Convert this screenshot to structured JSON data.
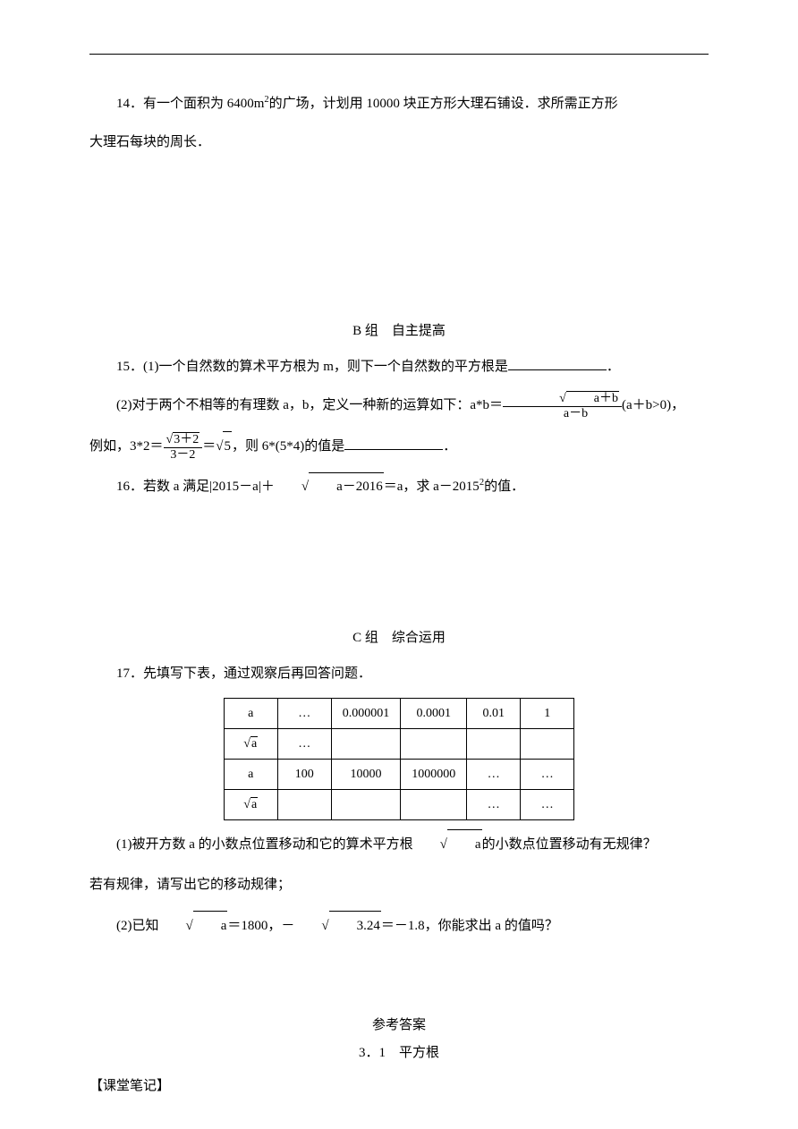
{
  "q14": {
    "text_line1": "14．有一个面积为 6400m",
    "text_line1_cont": "的广场，计划用 10000 块正方形大理石铺设．求所需正方形",
    "text_line2": "大理石每块的周长．"
  },
  "sectionB": {
    "header": "B 组　自主提高"
  },
  "q15": {
    "part1_pre": "15．(1)一个自然数的算术平方根为 m，则下一个自然数的平方根是",
    "part1_post": "．",
    "part2_pre": "(2)对于两个不相等的有理数 a，b，定义一种新的运算如下：a*b＝",
    "frac1_num": "a＋b",
    "frac1_den": "a－b",
    "part2_cond": "(a＋b>0)，",
    "part2_ex_pre": "例如，3*2＝",
    "frac2_num": "3＋2",
    "frac2_den": "3－2",
    "part2_eq": "＝",
    "sqrt5": "5",
    "part2_mid": "，则 6*(5*4)的值是",
    "part2_post": "．"
  },
  "q16": {
    "pre": "16．若数 a 满足|2015－a|＋",
    "sqrt_rad": "a－2016",
    "mid": "＝a，求 a－2015",
    "post": "的值．"
  },
  "sectionC": {
    "header": "C 组　综合运用"
  },
  "q17": {
    "intro": "17．先填写下表，通过观察后再回答问题．",
    "table": {
      "rows": [
        [
          "a",
          "…",
          "0.000001",
          "0.0001",
          "0.01",
          "1"
        ],
        [
          "√a",
          "…",
          "",
          "",
          "",
          ""
        ],
        [
          "a",
          "100",
          "10000",
          "1000000",
          "…",
          "…"
        ],
        [
          "√a",
          "",
          "",
          "",
          "…",
          "…"
        ]
      ]
    },
    "part1_pre": "(1)被开方数 a 的小数点位置移动和它的算术平方根",
    "part1_sqrt": "a",
    "part1_post": "的小数点位置移动有无规律？",
    "part1_line2": "若有规律，请写出它的移动规律；",
    "part2_pre": "(2)已知",
    "part2_sqrt1": "a",
    "part2_mid1": "＝1800，－",
    "part2_sqrt2": "3.24",
    "part2_post": "＝－1.8，你能求出 a 的值吗？"
  },
  "answers": {
    "title": "参考答案",
    "chapter": "3．1　平方根"
  },
  "notes": {
    "label": "【课堂笔记】"
  },
  "style": {
    "page_bg": "#ffffff",
    "text_color": "#000000",
    "font_size_body": 15,
    "table_border_color": "#000000",
    "blank_width": 110
  }
}
